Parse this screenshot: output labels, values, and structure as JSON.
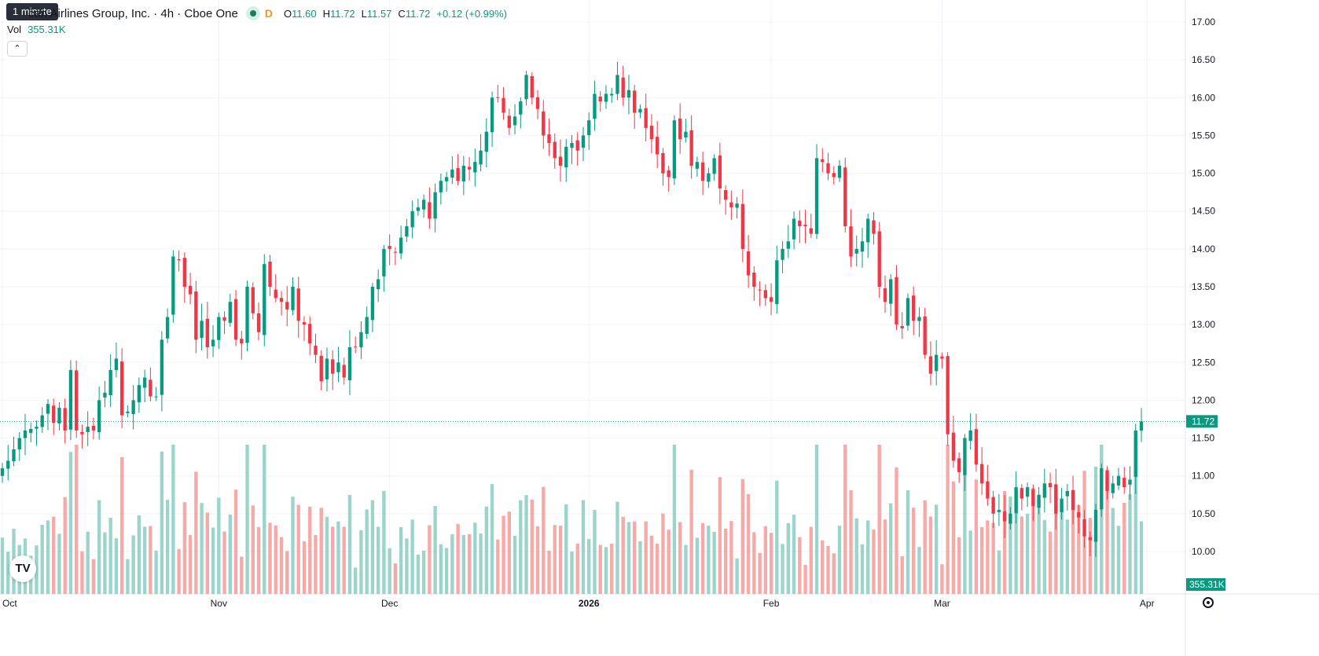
{
  "header": {
    "tooltip": "1 minute",
    "title": "can Airlines Group, Inc. · 4h · Cboe One",
    "interval_badge": "D",
    "ohlc": [
      {
        "k": "O",
        "v": "11.60"
      },
      {
        "k": "H",
        "v": "11.72"
      },
      {
        "k": "L",
        "v": "11.57"
      },
      {
        "k": "C",
        "v": "11.72"
      }
    ],
    "change": "+0.12 (+0.99%)",
    "volume_label": "Vol",
    "volume_value": "355.31K",
    "collapse_icon": "chevron-up-icon"
  },
  "logo_text": "TV",
  "settings_icon": "gear-icon",
  "colors": {
    "up": "#089981",
    "down": "#f23645",
    "up_volume": "#9ad4ca",
    "down_volume": "#f7a9a7",
    "grid": "#f0f3fa",
    "axis_text": "#131722"
  },
  "chart_data": {
    "type": "candlestick",
    "price_axis": {
      "min": 9.75,
      "max": 17.0,
      "ticks": [
        "17.00",
        "16.50",
        "16.00",
        "15.50",
        "15.00",
        "14.50",
        "14.00",
        "13.50",
        "13.00",
        "12.50",
        "12.00",
        "11.50",
        "11.00",
        "10.50",
        "10.00"
      ]
    },
    "time_axis_labels": [
      {
        "label": "Oct",
        "index": 0
      },
      {
        "label": "Nov",
        "index": 38
      },
      {
        "label": "Dec",
        "index": 68
      },
      {
        "label": "2026",
        "index": 103
      },
      {
        "label": "Feb",
        "index": 135
      },
      {
        "label": "Mar",
        "index": 165
      },
      {
        "label": "Apr",
        "index": 201
      }
    ],
    "last_price": "11.72",
    "last_volume": "355.31K",
    "ohlc_close": [
      11.1,
      11.2,
      11.35,
      11.5,
      11.6,
      11.62,
      11.65,
      11.8,
      11.95,
      11.7,
      11.9,
      11.6,
      12.4,
      11.6,
      11.55,
      11.65,
      11.6,
      12.0,
      12.1,
      12.4,
      12.55,
      11.8,
      11.85,
      12.0,
      12.2,
      12.3,
      12.05,
      12.05,
      12.8,
      13.1,
      13.9,
      13.85,
      13.5,
      13.4,
      12.8,
      13.05,
      12.7,
      12.8,
      13.1,
      13.05,
      13.3,
      12.8,
      12.75,
      13.5,
      13.15,
      12.9,
      13.8,
      13.5,
      13.35,
      13.3,
      13.2,
      13.5,
      13.05,
      13.0,
      12.75,
      12.6,
      12.25,
      12.55,
      12.35,
      12.5,
      12.3,
      12.7,
      12.7,
      12.9,
      13.1,
      13.5,
      13.6,
      14.0,
      14.0,
      13.95,
      14.15,
      14.3,
      14.5,
      14.55,
      14.65,
      14.4,
      14.75,
      14.9,
      14.95,
      15.05,
      14.9,
      15.1,
      15.05,
      15.15,
      15.3,
      15.55,
      16.0,
      16.0,
      15.8,
      15.6,
      15.75,
      15.95,
      16.3,
      16.0,
      15.85,
      15.5,
      15.4,
      15.2,
      15.1,
      15.35,
      15.4,
      15.3,
      15.5,
      15.7,
      16.05,
      15.95,
      16.05,
      16.05,
      16.3,
      16.0,
      16.1,
      15.8,
      15.85,
      15.6,
      15.45,
      15.25,
      15.0,
      14.95,
      15.7,
      15.45,
      15.55,
      15.1,
      15.15,
      14.9,
      15.0,
      15.2,
      14.8,
      14.65,
      14.55,
      14.6,
      14.0,
      13.65,
      13.5,
      13.45,
      13.35,
      13.3,
      13.85,
      14.0,
      14.1,
      14.4,
      14.3,
      14.3,
      14.2,
      15.2,
      15.15,
      15.0,
      14.95,
      15.1,
      14.3,
      13.9,
      14.0,
      14.1,
      14.4,
      14.2,
      13.5,
      13.3,
      13.6,
      13.0,
      12.95,
      13.35,
      13.05,
      13.1,
      12.6,
      12.35,
      12.6,
      12.55,
      11.55,
      11.2,
      11.05,
      11.5,
      11.6,
      11.15,
      10.9,
      10.7,
      10.5,
      10.55,
      10.4,
      10.5,
      10.85,
      10.7,
      10.85,
      10.6,
      10.75,
      10.9,
      10.85,
      10.5,
      10.7,
      10.8,
      10.55,
      10.45,
      10.2,
      10.15,
      10.55,
      11.1,
      10.8,
      10.9,
      11.0,
      10.85,
      10.95,
      11.6,
      11.72
    ]
  }
}
